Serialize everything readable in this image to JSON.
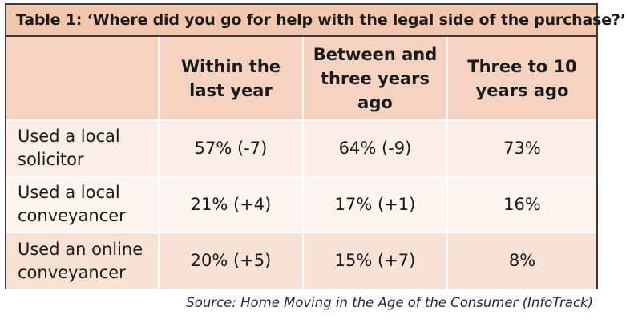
{
  "table": {
    "title": "Table 1: ‘Where did you go for help with the legal side of the purchase?’",
    "columns": [
      "",
      "Within the last year",
      "Between and three years ago",
      "Three to 10 years ago"
    ],
    "rows": [
      {
        "label": "Used a local solicitor",
        "values": [
          "57% (-7)",
          "64% (-9)",
          "73%"
        ]
      },
      {
        "label": "Used a local conveyancer",
        "values": [
          "21% (+4)",
          "17% (+1)",
          "16%"
        ]
      },
      {
        "label": "Used an online conveyancer",
        "values": [
          "20% (+5)",
          "15% (+7)",
          "8%"
        ]
      }
    ],
    "source": "Source: Home Moving in the Age of the Consumer (InfoTrack)"
  },
  "colors": {
    "title_background": "#f3c7ae",
    "header_background": "#f5d3c0",
    "row_background_1": "#fbeee6",
    "row_background_2": "#fdf5ef",
    "row_background_3": "#f8e2d5",
    "border": "#3b3b3b"
  }
}
